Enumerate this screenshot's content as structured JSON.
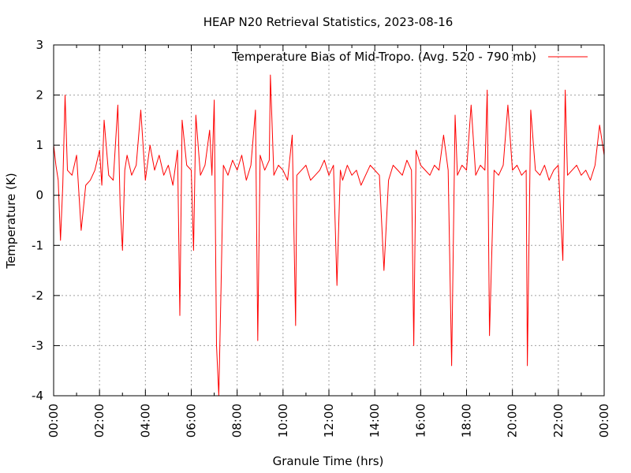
{
  "chart_data": {
    "type": "line",
    "title": "HEAP N20 Retrieval Statistics, 2023-08-16",
    "xlabel": "Granule Time (hrs)",
    "ylabel": "Temperature (K)",
    "xlim": [
      0,
      24
    ],
    "ylim": [
      -4,
      3
    ],
    "x_tick_values": [
      0,
      2,
      4,
      6,
      8,
      10,
      12,
      14,
      16,
      18,
      20,
      22,
      24
    ],
    "x_tick_labels": [
      "00:00",
      "02:00",
      "04:00",
      "06:00",
      "08:00",
      "10:00",
      "12:00",
      "14:00",
      "16:00",
      "18:00",
      "20:00",
      "22:00",
      "00:00"
    ],
    "y_tick_values": [
      -4,
      -3,
      -2,
      -1,
      0,
      1,
      2,
      3
    ],
    "y_tick_labels": [
      "-4",
      "-3",
      "-2",
      "-1",
      "0",
      "1",
      "2",
      "3"
    ],
    "grid": true,
    "legend_position": "top-right",
    "series": [
      {
        "name": "Temperature Bias of Mid-Tropo. (Avg. 520 - 790 mb)",
        "color": "#ff0000",
        "x": [
          0.0,
          0.1,
          0.2,
          0.3,
          0.4,
          0.5,
          0.6,
          0.8,
          1.0,
          1.2,
          1.4,
          1.6,
          1.8,
          2.0,
          2.1,
          2.2,
          2.4,
          2.6,
          2.8,
          2.9,
          3.0,
          3.1,
          3.2,
          3.4,
          3.6,
          3.8,
          4.0,
          4.2,
          4.4,
          4.6,
          4.8,
          5.0,
          5.2,
          5.4,
          5.5,
          5.6,
          5.8,
          6.0,
          6.1,
          6.2,
          6.4,
          6.6,
          6.8,
          6.9,
          7.0,
          7.1,
          7.2,
          7.3,
          7.4,
          7.6,
          7.8,
          8.0,
          8.2,
          8.4,
          8.6,
          8.8,
          8.9,
          9.0,
          9.2,
          9.4,
          9.45,
          9.6,
          9.8,
          10.0,
          10.2,
          10.4,
          10.55,
          10.6,
          10.8,
          11.0,
          11.2,
          11.4,
          11.6,
          11.8,
          12.0,
          12.2,
          12.35,
          12.5,
          12.6,
          12.8,
          13.0,
          13.2,
          13.4,
          13.6,
          13.8,
          14.0,
          14.2,
          14.4,
          14.6,
          14.8,
          15.0,
          15.2,
          15.4,
          15.6,
          15.7,
          15.8,
          16.0,
          16.2,
          16.4,
          16.6,
          16.8,
          17.0,
          17.2,
          17.35,
          17.5,
          17.6,
          17.8,
          18.0,
          18.2,
          18.4,
          18.6,
          18.8,
          18.9,
          19.0,
          19.2,
          19.4,
          19.6,
          19.8,
          20.0,
          20.2,
          20.4,
          20.6,
          20.65,
          20.8,
          21.0,
          21.2,
          21.4,
          21.6,
          21.8,
          22.0,
          22.2,
          22.3,
          22.4,
          22.6,
          22.8,
          23.0,
          23.2,
          23.4,
          23.6,
          23.8,
          24.0
        ],
        "y": [
          1.0,
          0.6,
          0.3,
          -0.9,
          0.2,
          2.0,
          0.5,
          0.4,
          0.8,
          -0.7,
          0.2,
          0.3,
          0.5,
          0.9,
          0.2,
          1.5,
          0.4,
          0.3,
          1.8,
          -0.2,
          -1.1,
          0.5,
          0.8,
          0.4,
          0.6,
          1.7,
          0.3,
          1.0,
          0.5,
          0.8,
          0.4,
          0.6,
          0.2,
          0.9,
          -2.4,
          1.5,
          0.6,
          0.5,
          -1.1,
          1.6,
          0.4,
          0.6,
          1.3,
          0.4,
          1.9,
          -3.0,
          -4.0,
          -1.8,
          0.6,
          0.4,
          0.7,
          0.5,
          0.8,
          0.3,
          0.6,
          1.7,
          -2.9,
          0.8,
          0.5,
          0.7,
          2.4,
          0.4,
          0.6,
          0.5,
          0.3,
          1.2,
          -2.6,
          0.4,
          0.5,
          0.6,
          0.3,
          0.4,
          0.5,
          0.7,
          0.4,
          0.6,
          -1.8,
          0.5,
          0.3,
          0.6,
          0.4,
          0.5,
          0.2,
          0.4,
          0.6,
          0.5,
          0.4,
          -1.5,
          0.3,
          0.6,
          0.5,
          0.4,
          0.7,
          0.5,
          -3.0,
          0.9,
          0.6,
          0.5,
          0.4,
          0.6,
          0.5,
          1.2,
          0.5,
          -3.4,
          1.6,
          0.4,
          0.6,
          0.5,
          1.8,
          0.4,
          0.6,
          0.5,
          2.1,
          -2.8,
          0.5,
          0.4,
          0.6,
          1.8,
          0.5,
          0.6,
          0.4,
          0.5,
          -3.4,
          1.7,
          0.5,
          0.4,
          0.6,
          0.3,
          0.5,
          0.6,
          -1.3,
          2.1,
          0.4,
          0.5,
          0.6,
          0.4,
          0.5,
          0.3,
          0.6,
          1.4,
          0.8
        ]
      }
    ]
  }
}
